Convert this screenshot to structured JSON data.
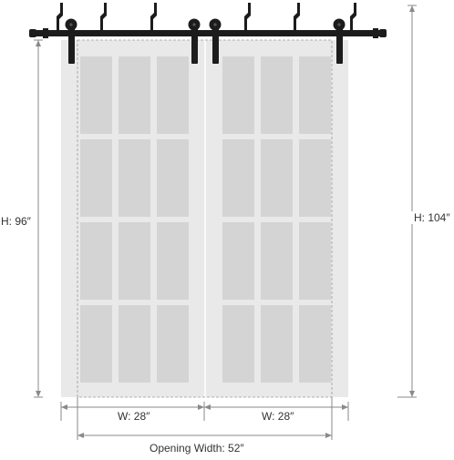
{
  "colors": {
    "hardware": "#1c1c1c",
    "door_frame": "#e9e9e9",
    "glass": "#d4d4d4",
    "dimension_line": "#8a8a8a",
    "label_text": "#333333",
    "opening_outline": "#9a9a9a"
  },
  "diagram": {
    "door_count": 2,
    "pane_columns_per_door": 3,
    "pane_rows_per_door": 4,
    "hanger_count": 4
  },
  "dimensions": {
    "door_height": "H: 96″",
    "total_height": "H: 104″",
    "left_door_width": "W: 28″",
    "right_door_width": "W: 28″",
    "opening_width": "Opening Width: 52″"
  }
}
